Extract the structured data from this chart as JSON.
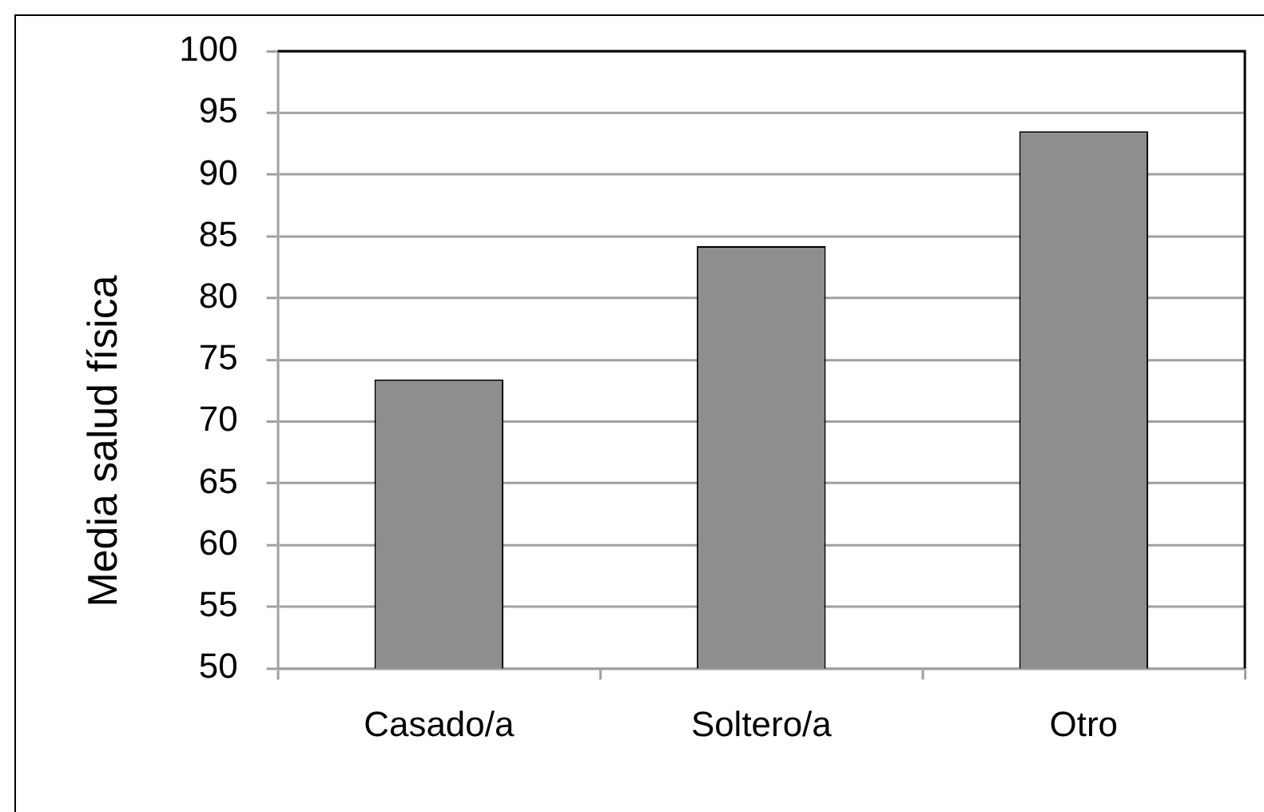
{
  "chart_data": {
    "type": "bar",
    "ylabel": "Media salud física",
    "categories": [
      "Casado/a",
      "Soltero/a",
      "Otro"
    ],
    "values": [
      73.4,
      84.2,
      93.5
    ],
    "color": "#8e8e8e",
    "ylim": [
      50,
      100
    ],
    "yticks": [
      50,
      55,
      60,
      65,
      70,
      75,
      80,
      85,
      90,
      95,
      100
    ],
    "grid": "y"
  }
}
